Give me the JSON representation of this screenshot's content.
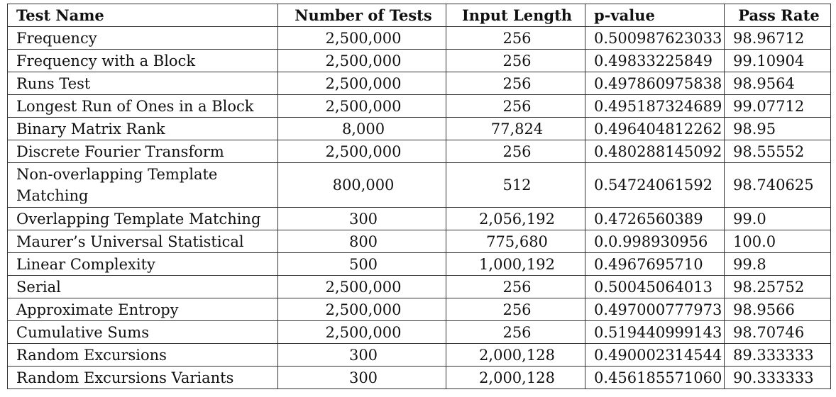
{
  "table": {
    "headers": [
      "Test Name",
      "Number of Tests",
      "Input Length",
      "p-value",
      "Pass Rate"
    ],
    "rows": [
      [
        "Frequency",
        "2,500,000",
        "256",
        "0.500987623033",
        "98.96712"
      ],
      [
        "Frequency with a Block",
        "2,500,000",
        "256",
        "0.49833225849",
        "99.10904"
      ],
      [
        "Runs Test",
        "2,500,000",
        "256",
        "0.497860975838",
        "98.9564"
      ],
      [
        "Longest Run of Ones in a Block",
        "2,500,000",
        "256",
        "0.495187324689",
        "99.07712"
      ],
      [
        "Binary Matrix Rank",
        "8,000",
        "77,824",
        "0.496404812262",
        "98.95"
      ],
      [
        "Discrete Fourier Transform",
        "2,500,000",
        "256",
        "0.480288145092",
        "98.55552"
      ],
      [
        "Non-overlapping Template Matching",
        "800,000",
        "512",
        "0.54724061592",
        "98.740625"
      ],
      [
        "Overlapping Template Matching",
        "300",
        "2,056,192",
        "0.4726560389",
        "99.0"
      ],
      [
        "Maurer’s Universal Statistical",
        "800",
        "775,680",
        "0.0.998930956",
        "100.0"
      ],
      [
        "Linear Complexity",
        "500",
        "1,000,192",
        "0.4967695710",
        "99.8"
      ],
      [
        "Serial",
        "2,500,000",
        "256",
        "0.50045064013",
        "98.25752"
      ],
      [
        "Approximate Entropy",
        "2,500,000",
        "256",
        "0.497000777973",
        "98.9566"
      ],
      [
        "Cumulative Sums",
        "2,500,000",
        "256",
        "0.519440999143",
        "98.70746"
      ],
      [
        "Random Excursions",
        "300",
        "2,000,128",
        "0.490002314544",
        "89.333333"
      ],
      [
        "Random Excursions Variants",
        "300",
        "2,000,128",
        "0.456185571060",
        "90.333333"
      ]
    ]
  }
}
